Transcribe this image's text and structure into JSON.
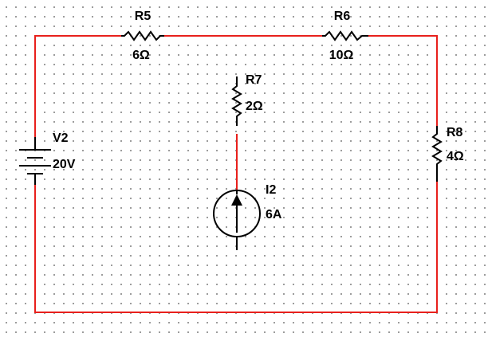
{
  "colors": {
    "wire": "#e8201c",
    "component": "#000000",
    "grid_dot": "#555555",
    "background": "#ffffff"
  },
  "components": {
    "r5": {
      "name": "R5",
      "value": "6Ω"
    },
    "r6": {
      "name": "R6",
      "value": "10Ω"
    },
    "r7": {
      "name": "R7",
      "value": "2Ω"
    },
    "r8": {
      "name": "R8",
      "value": "4Ω"
    },
    "v2": {
      "name": "V2",
      "value": "20V"
    },
    "i2": {
      "name": "I2",
      "value": "6A"
    }
  }
}
